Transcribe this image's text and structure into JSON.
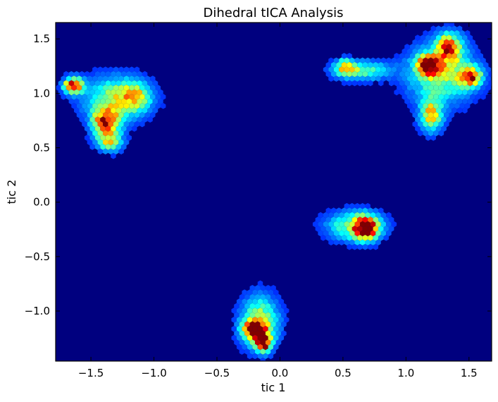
{
  "chart_data": {
    "type": "heatmap",
    "subtype": "hexbin density",
    "title": "Dihedral tICA Analysis",
    "xlabel": "tic 1",
    "ylabel": "tic 2",
    "xlim": [
      -1.78,
      1.68
    ],
    "ylim": [
      -1.46,
      1.65
    ],
    "xticks": [
      -1.5,
      -1.0,
      -0.5,
      0.0,
      0.5,
      1.0,
      1.5
    ],
    "xtick_labels": [
      "−1.5",
      "−1.0",
      "−0.5",
      "0.0",
      "0.5",
      "1.0",
      "1.5"
    ],
    "yticks": [
      -1.0,
      -0.5,
      0.0,
      0.5,
      1.0,
      1.5
    ],
    "ytick_labels": [
      "−1.0",
      "−0.5",
      "0.0",
      "0.5",
      "1.0",
      "1.5"
    ],
    "grid": false,
    "colormap": "jet",
    "background_color": "#00007f",
    "clusters": [
      {
        "name": "upper-left-peak",
        "x": -1.64,
        "y": 1.07,
        "sx": 0.05,
        "sy": 0.05,
        "amp": 1.0
      },
      {
        "name": "upper-left-main",
        "x": -1.38,
        "y": 0.73,
        "sx": 0.07,
        "sy": 0.09,
        "amp": 0.9
      },
      {
        "name": "upper-left-spread",
        "x": -1.3,
        "y": 0.95,
        "sx": 0.17,
        "sy": 0.14,
        "amp": 0.5
      },
      {
        "name": "upper-left-arm",
        "x": -1.15,
        "y": 0.97,
        "sx": 0.08,
        "sy": 0.08,
        "amp": 0.45
      },
      {
        "name": "upper-left-tail",
        "x": -1.35,
        "y": 0.55,
        "sx": 0.07,
        "sy": 0.06,
        "amp": 0.5
      },
      {
        "name": "bottom-main",
        "x": -0.2,
        "y": -1.18,
        "sx": 0.06,
        "sy": 0.06,
        "amp": 1.05
      },
      {
        "name": "bottom-peak",
        "x": -0.13,
        "y": -1.3,
        "sx": 0.04,
        "sy": 0.05,
        "amp": 1.0
      },
      {
        "name": "bottom-spread",
        "x": -0.16,
        "y": -1.1,
        "sx": 0.1,
        "sy": 0.16,
        "amp": 0.55
      },
      {
        "name": "middle-main",
        "x": 0.68,
        "y": -0.24,
        "sx": 0.06,
        "sy": 0.07,
        "amp": 1.05
      },
      {
        "name": "middle-spread",
        "x": 0.6,
        "y": -0.22,
        "sx": 0.15,
        "sy": 0.09,
        "amp": 0.5
      },
      {
        "name": "top-right-band-left",
        "x": 0.52,
        "y": 1.24,
        "sx": 0.05,
        "sy": 0.05,
        "amp": 0.55
      },
      {
        "name": "top-right-band",
        "x": 0.65,
        "y": 1.21,
        "sx": 0.15,
        "sy": 0.06,
        "amp": 0.42
      },
      {
        "name": "top-right-red",
        "x": 1.18,
        "y": 1.26,
        "sx": 0.06,
        "sy": 0.06,
        "amp": 1.0
      },
      {
        "name": "top-right-orange",
        "x": 1.34,
        "y": 1.42,
        "sx": 0.07,
        "sy": 0.09,
        "amp": 0.75
      },
      {
        "name": "top-right-right",
        "x": 1.51,
        "y": 1.15,
        "sx": 0.06,
        "sy": 0.06,
        "amp": 0.85
      },
      {
        "name": "top-right-spread",
        "x": 1.28,
        "y": 1.18,
        "sx": 0.18,
        "sy": 0.18,
        "amp": 0.5
      },
      {
        "name": "top-right-lower",
        "x": 1.2,
        "y": 0.8,
        "sx": 0.06,
        "sy": 0.1,
        "amp": 0.65
      }
    ]
  }
}
